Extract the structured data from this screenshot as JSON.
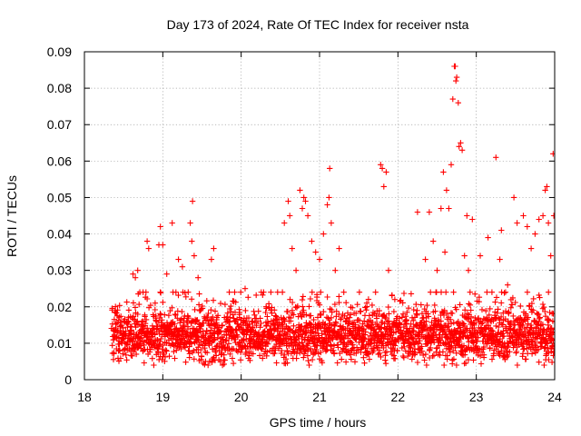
{
  "chart_data": {
    "type": "scatter",
    "title": "Day 173 of 2024, Rate Of TEC Index for receiver nsta",
    "xlabel": "GPS time / hours",
    "ylabel": "ROTI / TECUs",
    "xlim": [
      18,
      24
    ],
    "ylim": [
      0,
      0.09
    ],
    "x_ticks": [
      18,
      19,
      20,
      21,
      22,
      23,
      24
    ],
    "y_ticks": [
      0,
      0.01,
      0.02,
      0.03,
      0.04,
      0.05,
      0.06,
      0.07,
      0.08,
      0.09
    ],
    "y_tick_labels": [
      "0",
      "0.01",
      "0.02",
      "0.03",
      "0.04",
      "0.05",
      "0.06",
      "0.07",
      "0.08",
      "0.09"
    ],
    "grid": true,
    "marker": "+",
    "series": [
      {
        "name": "ROTI",
        "color": "#ff0000",
        "base_band": {
          "x_start": 18.35,
          "x_end": 24.0,
          "y_min": 0.005,
          "y_max": 0.02,
          "typical": 0.012
        },
        "points": [
          [
            18.62,
            0.029
          ],
          [
            18.65,
            0.028
          ],
          [
            18.68,
            0.03
          ],
          [
            18.8,
            0.038
          ],
          [
            18.82,
            0.036
          ],
          [
            18.95,
            0.037
          ],
          [
            18.97,
            0.042
          ],
          [
            19.0,
            0.037
          ],
          [
            19.05,
            0.029
          ],
          [
            19.12,
            0.043
          ],
          [
            19.2,
            0.033
          ],
          [
            19.25,
            0.031
          ],
          [
            19.35,
            0.043
          ],
          [
            19.37,
            0.038
          ],
          [
            19.38,
            0.049
          ],
          [
            19.4,
            0.034
          ],
          [
            19.45,
            0.028
          ],
          [
            19.62,
            0.033
          ],
          [
            19.65,
            0.036
          ],
          [
            20.05,
            0.025
          ],
          [
            20.55,
            0.043
          ],
          [
            20.6,
            0.049
          ],
          [
            20.62,
            0.045
          ],
          [
            20.65,
            0.036
          ],
          [
            20.7,
            0.03
          ],
          [
            20.75,
            0.052
          ],
          [
            20.78,
            0.047
          ],
          [
            20.8,
            0.05
          ],
          [
            20.82,
            0.049
          ],
          [
            20.85,
            0.045
          ],
          [
            20.9,
            0.038
          ],
          [
            20.95,
            0.035
          ],
          [
            21.0,
            0.033
          ],
          [
            21.05,
            0.04
          ],
          [
            21.1,
            0.048
          ],
          [
            21.12,
            0.05
          ],
          [
            21.13,
            0.058
          ],
          [
            21.15,
            0.043
          ],
          [
            21.2,
            0.03
          ],
          [
            21.25,
            0.036
          ],
          [
            21.78,
            0.059
          ],
          [
            21.8,
            0.058
          ],
          [
            21.82,
            0.053
          ],
          [
            21.85,
            0.057
          ],
          [
            21.88,
            0.03
          ],
          [
            22.25,
            0.046
          ],
          [
            22.35,
            0.033
          ],
          [
            22.4,
            0.046
          ],
          [
            22.45,
            0.038
          ],
          [
            22.5,
            0.03
          ],
          [
            22.55,
            0.047
          ],
          [
            22.58,
            0.057
          ],
          [
            22.6,
            0.035
          ],
          [
            22.62,
            0.052
          ],
          [
            22.65,
            0.047
          ],
          [
            22.68,
            0.059
          ],
          [
            22.7,
            0.077
          ],
          [
            22.72,
            0.086
          ],
          [
            22.73,
            0.086
          ],
          [
            22.74,
            0.082
          ],
          [
            22.75,
            0.083
          ],
          [
            22.77,
            0.076
          ],
          [
            22.78,
            0.064
          ],
          [
            22.8,
            0.065
          ],
          [
            22.82,
            0.063
          ],
          [
            22.85,
            0.034
          ],
          [
            22.88,
            0.045
          ],
          [
            22.9,
            0.03
          ],
          [
            22.95,
            0.044
          ],
          [
            23.05,
            0.034
          ],
          [
            23.15,
            0.039
          ],
          [
            23.25,
            0.061
          ],
          [
            23.3,
            0.033
          ],
          [
            23.32,
            0.041
          ],
          [
            23.4,
            0.026
          ],
          [
            23.48,
            0.05
          ],
          [
            23.52,
            0.043
          ],
          [
            23.6,
            0.045
          ],
          [
            23.65,
            0.042
          ],
          [
            23.7,
            0.036
          ],
          [
            23.75,
            0.04
          ],
          [
            23.8,
            0.044
          ],
          [
            23.85,
            0.045
          ],
          [
            23.88,
            0.052
          ],
          [
            23.9,
            0.053
          ],
          [
            23.92,
            0.043
          ],
          [
            23.95,
            0.034
          ],
          [
            23.98,
            0.062
          ],
          [
            23.99,
            0.045
          ]
        ]
      }
    ]
  }
}
